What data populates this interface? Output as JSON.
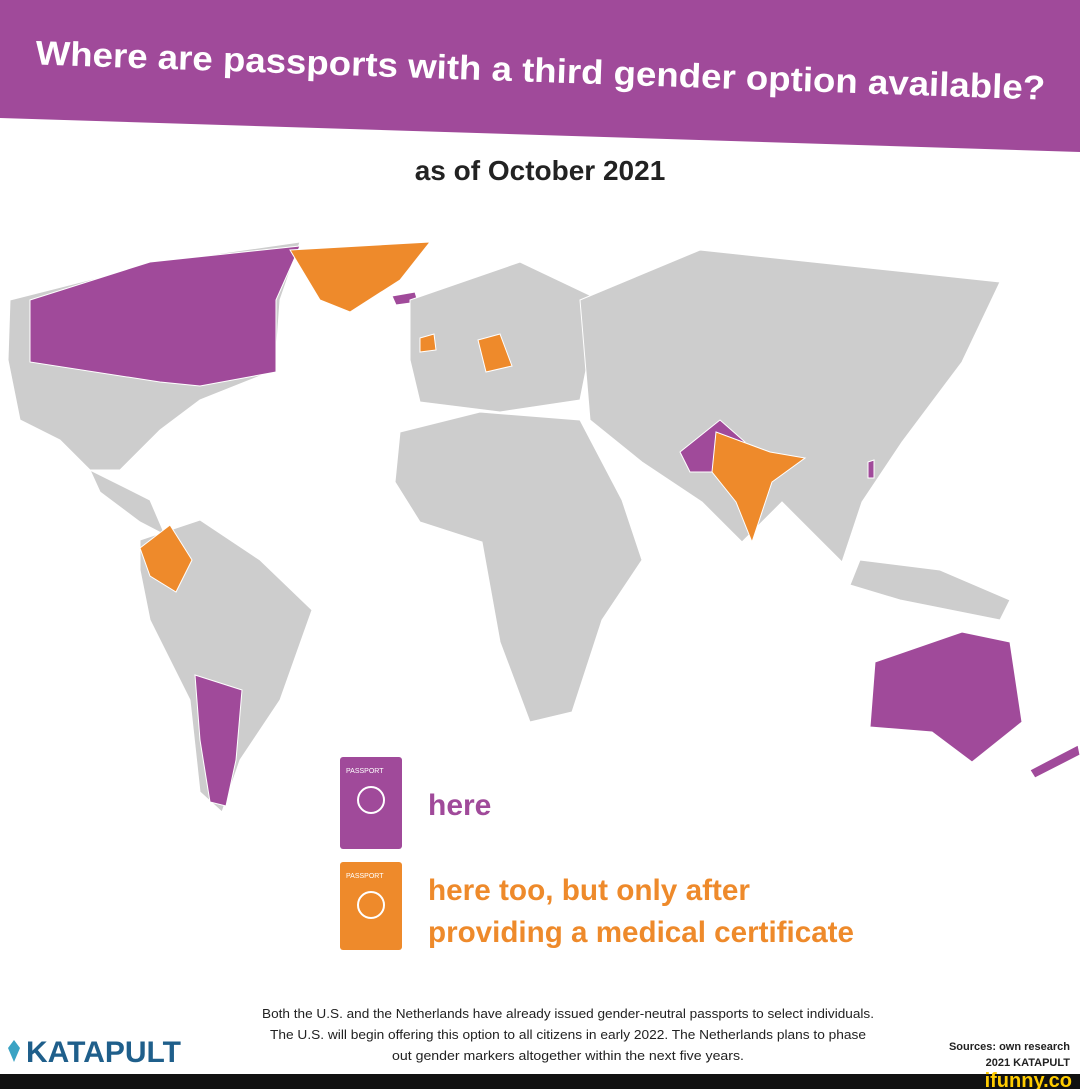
{
  "header": {
    "title": "Where are passports with a third gender option available?",
    "subtitle": "as of October 2021"
  },
  "legend": [
    {
      "passport_label": "PASSPORT",
      "lines": [
        "here"
      ]
    },
    {
      "passport_label": "PASSPORT",
      "lines": [
        "here too, but only after",
        "providing a medical certificate"
      ]
    }
  ],
  "footnote": [
    "Both the U.S. and the Netherlands have already issued gender-neutral passports to select individuals.",
    "The U.S. will begin offering this option to all citizens in early 2022. The Netherlands plans to phase",
    "out gender markers altogether within the next five years."
  ],
  "logo": "KATAPULT",
  "sources": "Sources: own research",
  "copyright": "2021 KATAPULT",
  "watermark": "ifunny.co"
}
